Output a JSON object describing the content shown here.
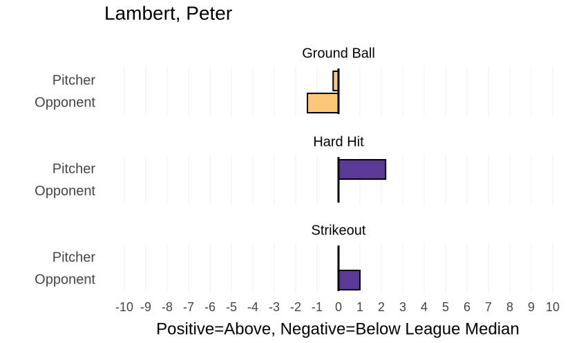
{
  "title": "Lambert, Peter",
  "xlabel": "Positive=Above, Negative=Below League Median",
  "chart_data": [
    {
      "type": "bar",
      "title": "Ground Ball",
      "categories": [
        "Pitcher",
        "Opponent"
      ],
      "values": [
        -0.25,
        -1.45
      ],
      "color": "#fdc77a",
      "xlim": [
        -10,
        10
      ],
      "xticks": [
        -10,
        -9,
        -8,
        -7,
        -6,
        -5,
        -4,
        -3,
        -2,
        -1,
        0,
        1,
        2,
        3,
        4,
        5,
        6,
        7,
        8,
        9,
        10
      ],
      "grid": true
    },
    {
      "type": "bar",
      "title": "Hard Hit",
      "categories": [
        "Pitcher",
        "Opponent"
      ],
      "values": [
        2.2,
        0
      ],
      "color": "#5b3a96",
      "xlim": [
        -10,
        10
      ],
      "xticks": [
        -10,
        -9,
        -8,
        -7,
        -6,
        -5,
        -4,
        -3,
        -2,
        -1,
        0,
        1,
        2,
        3,
        4,
        5,
        6,
        7,
        8,
        9,
        10
      ],
      "grid": true
    },
    {
      "type": "bar",
      "title": "Strikeout",
      "categories": [
        "Pitcher",
        "Opponent"
      ],
      "values": [
        0,
        1.0
      ],
      "color": "#5b3a96",
      "xlim": [
        -10,
        10
      ],
      "xticks": [
        -10,
        -9,
        -8,
        -7,
        -6,
        -5,
        -4,
        -3,
        -2,
        -1,
        0,
        1,
        2,
        3,
        4,
        5,
        6,
        7,
        8,
        9,
        10
      ],
      "grid": true
    }
  ]
}
